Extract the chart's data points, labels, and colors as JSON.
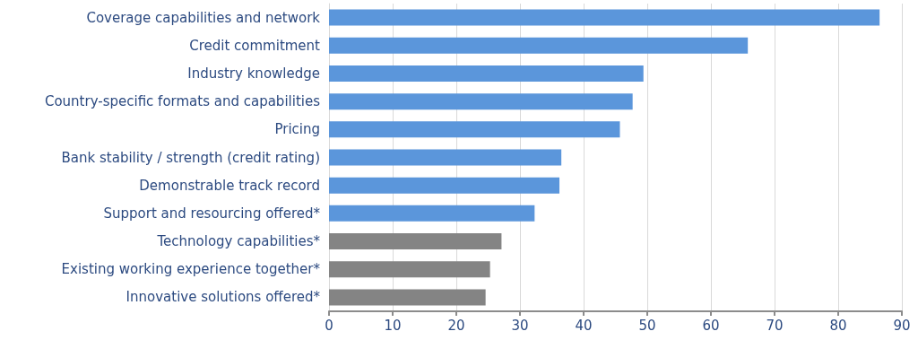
{
  "chart_data": {
    "type": "bar",
    "orientation": "horizontal",
    "categories": [
      "Coverage capabilities and network",
      "Credit commitment",
      "Industry knowledge",
      "Country-specific formats and capabilities",
      "Pricing",
      "Bank stability / strength (credit rating)",
      "Demonstrable track record",
      "Support and resourcing offered*",
      "Technology capabilities*",
      "Existing working experience together*",
      "Innovative solutions offered*"
    ],
    "values": [
      86.5,
      65.8,
      49.4,
      47.7,
      45.7,
      36.5,
      36.2,
      32.3,
      27.1,
      25.3,
      24.6
    ],
    "colors": [
      "#5b96db",
      "#5b96db",
      "#5b96db",
      "#5b96db",
      "#5b96db",
      "#5b96db",
      "#5b96db",
      "#5b96db",
      "#848484",
      "#848484",
      "#848484"
    ],
    "xlim": [
      0,
      90
    ],
    "xticks": [
      0,
      10,
      20,
      30,
      40,
      50,
      60,
      70,
      80,
      90
    ],
    "grid": "x"
  }
}
